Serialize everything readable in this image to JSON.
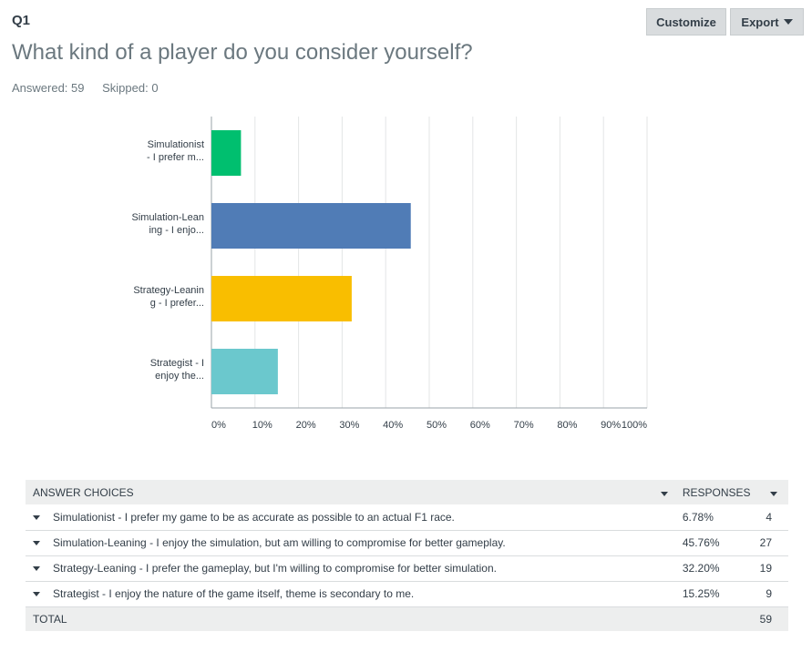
{
  "question": {
    "number": "Q1",
    "title": "What kind of a player do you consider yourself?",
    "answered": "Answered: 59",
    "skipped": "Skipped: 0"
  },
  "toolbar": {
    "customize_label": "Customize",
    "export_label": "Export"
  },
  "chart_data": {
    "type": "bar",
    "orientation": "horizontal",
    "categories": [
      [
        "Simulationist",
        "- I prefer m..."
      ],
      [
        "Simulation-Lean",
        "ing - I enjo..."
      ],
      [
        "Strategy-Leanin",
        "g - I prefer..."
      ],
      [
        "Strategist - I",
        "enjoy the..."
      ]
    ],
    "values": [
      6.78,
      45.76,
      32.2,
      15.25
    ],
    "colors": [
      "#00bf6f",
      "#507cb6",
      "#f9be00",
      "#6bc8cd"
    ],
    "xlim": [
      0,
      100
    ],
    "xticks": [
      "0%",
      "10%",
      "20%",
      "30%",
      "40%",
      "50%",
      "60%",
      "70%",
      "80%",
      "90%",
      "100%"
    ],
    "grid": true
  },
  "table": {
    "header_choices": "ANSWER CHOICES",
    "header_responses": "RESPONSES",
    "rows": [
      {
        "choice": "Simulationist - I prefer my game to be as accurate as possible to an actual F1 race.",
        "percent": "6.78%",
        "count": "4"
      },
      {
        "choice": "Simulation-Leaning - I enjoy the simulation, but am willing to compromise for better gameplay.",
        "percent": "45.76%",
        "count": "27"
      },
      {
        "choice": "Strategy-Leaning - I prefer the gameplay, but I'm willing to compromise for better simulation.",
        "percent": "32.20%",
        "count": "19"
      },
      {
        "choice": "Strategist - I enjoy the nature of the game itself, theme is secondary to me.",
        "percent": "15.25%",
        "count": "9"
      }
    ],
    "total_label": "TOTAL",
    "total_value": "59"
  }
}
